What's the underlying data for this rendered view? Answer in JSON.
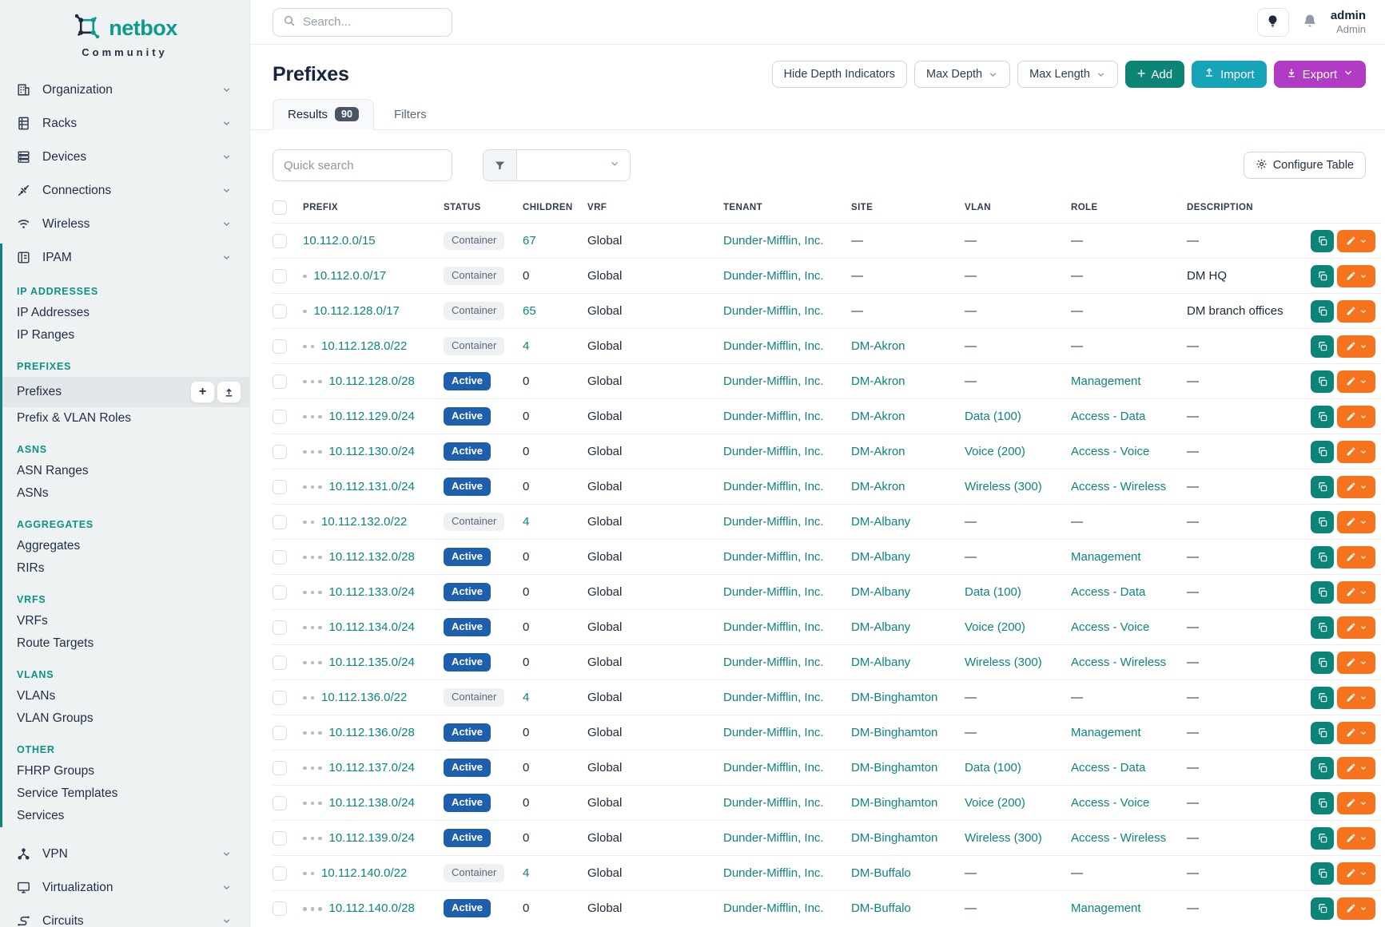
{
  "brand": {
    "name": "netbox",
    "subtitle": "Community"
  },
  "topbar": {
    "search_placeholder": "Search...",
    "user": {
      "name": "admin",
      "role": "Admin"
    }
  },
  "sidebar": {
    "top_items": [
      {
        "label": "Organization",
        "icon": "building-icon"
      },
      {
        "label": "Racks",
        "icon": "rack-icon"
      },
      {
        "label": "Devices",
        "icon": "devices-icon"
      },
      {
        "label": "Connections",
        "icon": "connections-icon"
      },
      {
        "label": "Wireless",
        "icon": "wifi-icon"
      }
    ],
    "ipam": {
      "label": "IPAM",
      "icon": "ipam-icon",
      "expanded": true,
      "sections": [
        {
          "header": "IP ADDRESSES",
          "items": [
            {
              "label": "IP Addresses"
            },
            {
              "label": "IP Ranges"
            }
          ]
        },
        {
          "header": "PREFIXES",
          "items": [
            {
              "label": "Prefixes",
              "active": true,
              "quick_buttons": [
                "plus",
                "upload"
              ]
            },
            {
              "label": "Prefix & VLAN Roles"
            }
          ]
        },
        {
          "header": "ASNS",
          "items": [
            {
              "label": "ASN Ranges"
            },
            {
              "label": "ASNs"
            }
          ]
        },
        {
          "header": "AGGREGATES",
          "items": [
            {
              "label": "Aggregates"
            },
            {
              "label": "RIRs"
            }
          ]
        },
        {
          "header": "VRFS",
          "items": [
            {
              "label": "VRFs"
            },
            {
              "label": "Route Targets"
            }
          ]
        },
        {
          "header": "VLANS",
          "items": [
            {
              "label": "VLANs"
            },
            {
              "label": "VLAN Groups"
            }
          ]
        },
        {
          "header": "OTHER",
          "items": [
            {
              "label": "FHRP Groups"
            },
            {
              "label": "Service Templates"
            },
            {
              "label": "Services"
            }
          ]
        }
      ]
    },
    "bottom_items": [
      {
        "label": "VPN",
        "icon": "vpn-icon"
      },
      {
        "label": "Virtualization",
        "icon": "virtualization-icon"
      },
      {
        "label": "Circuits",
        "icon": "circuits-icon"
      }
    ]
  },
  "page": {
    "title": "Prefixes",
    "controls": {
      "hide_depth_label": "Hide Depth Indicators",
      "max_depth_label": "Max Depth",
      "max_length_label": "Max Length",
      "add_label": "Add",
      "import_label": "Import",
      "export_label": "Export"
    },
    "tabs": [
      {
        "label": "Results",
        "badge": "90",
        "active": true
      },
      {
        "label": "Filters",
        "active": false
      }
    ],
    "quick_search_placeholder": "Quick search",
    "filter_select_value": "",
    "configure_table_label": "Configure Table"
  },
  "table": {
    "columns": [
      "PREFIX",
      "STATUS",
      "CHILDREN",
      "VRF",
      "TENANT",
      "SITE",
      "VLAN",
      "ROLE",
      "DESCRIPTION"
    ],
    "rows": [
      {
        "depth": 0,
        "prefix": "10.112.0.0/15",
        "status": "Container",
        "children": "67",
        "children_link": true,
        "vrf": "Global",
        "tenant": "Dunder-Mifflin, Inc.",
        "site": "—",
        "vlan": "—",
        "role": "—",
        "description": "—"
      },
      {
        "depth": 1,
        "prefix": "10.112.0.0/17",
        "status": "Container",
        "children": "0",
        "children_link": false,
        "vrf": "Global",
        "tenant": "Dunder-Mifflin, Inc.",
        "site": "—",
        "vlan": "—",
        "role": "—",
        "description": "DM HQ"
      },
      {
        "depth": 1,
        "prefix": "10.112.128.0/17",
        "status": "Container",
        "children": "65",
        "children_link": true,
        "vrf": "Global",
        "tenant": "Dunder-Mifflin, Inc.",
        "site": "—",
        "vlan": "—",
        "role": "—",
        "description": "DM branch offices"
      },
      {
        "depth": 2,
        "prefix": "10.112.128.0/22",
        "status": "Container",
        "children": "4",
        "children_link": true,
        "vrf": "Global",
        "tenant": "Dunder-Mifflin, Inc.",
        "site": "DM-Akron",
        "vlan": "—",
        "role": "—",
        "description": "—"
      },
      {
        "depth": 3,
        "prefix": "10.112.128.0/28",
        "status": "Active",
        "children": "0",
        "children_link": false,
        "vrf": "Global",
        "tenant": "Dunder-Mifflin, Inc.",
        "site": "DM-Akron",
        "vlan": "—",
        "role": "Management",
        "description": "—"
      },
      {
        "depth": 3,
        "prefix": "10.112.129.0/24",
        "status": "Active",
        "children": "0",
        "children_link": false,
        "vrf": "Global",
        "tenant": "Dunder-Mifflin, Inc.",
        "site": "DM-Akron",
        "vlan": "Data (100)",
        "role": "Access - Data",
        "description": "—"
      },
      {
        "depth": 3,
        "prefix": "10.112.130.0/24",
        "status": "Active",
        "children": "0",
        "children_link": false,
        "vrf": "Global",
        "tenant": "Dunder-Mifflin, Inc.",
        "site": "DM-Akron",
        "vlan": "Voice (200)",
        "role": "Access - Voice",
        "description": "—"
      },
      {
        "depth": 3,
        "prefix": "10.112.131.0/24",
        "status": "Active",
        "children": "0",
        "children_link": false,
        "vrf": "Global",
        "tenant": "Dunder-Mifflin, Inc.",
        "site": "DM-Akron",
        "vlan": "Wireless (300)",
        "role": "Access - Wireless",
        "description": "—"
      },
      {
        "depth": 2,
        "prefix": "10.112.132.0/22",
        "status": "Container",
        "children": "4",
        "children_link": true,
        "vrf": "Global",
        "tenant": "Dunder-Mifflin, Inc.",
        "site": "DM-Albany",
        "vlan": "—",
        "role": "—",
        "description": "—"
      },
      {
        "depth": 3,
        "prefix": "10.112.132.0/28",
        "status": "Active",
        "children": "0",
        "children_link": false,
        "vrf": "Global",
        "tenant": "Dunder-Mifflin, Inc.",
        "site": "DM-Albany",
        "vlan": "—",
        "role": "Management",
        "description": "—"
      },
      {
        "depth": 3,
        "prefix": "10.112.133.0/24",
        "status": "Active",
        "children": "0",
        "children_link": false,
        "vrf": "Global",
        "tenant": "Dunder-Mifflin, Inc.",
        "site": "DM-Albany",
        "vlan": "Data (100)",
        "role": "Access - Data",
        "description": "—"
      },
      {
        "depth": 3,
        "prefix": "10.112.134.0/24",
        "status": "Active",
        "children": "0",
        "children_link": false,
        "vrf": "Global",
        "tenant": "Dunder-Mifflin, Inc.",
        "site": "DM-Albany",
        "vlan": "Voice (200)",
        "role": "Access - Voice",
        "description": "—"
      },
      {
        "depth": 3,
        "prefix": "10.112.135.0/24",
        "status": "Active",
        "children": "0",
        "children_link": false,
        "vrf": "Global",
        "tenant": "Dunder-Mifflin, Inc.",
        "site": "DM-Albany",
        "vlan": "Wireless (300)",
        "role": "Access - Wireless",
        "description": "—"
      },
      {
        "depth": 2,
        "prefix": "10.112.136.0/22",
        "status": "Container",
        "children": "4",
        "children_link": true,
        "vrf": "Global",
        "tenant": "Dunder-Mifflin, Inc.",
        "site": "DM-Binghamton",
        "vlan": "—",
        "role": "—",
        "description": "—"
      },
      {
        "depth": 3,
        "prefix": "10.112.136.0/28",
        "status": "Active",
        "children": "0",
        "children_link": false,
        "vrf": "Global",
        "tenant": "Dunder-Mifflin, Inc.",
        "site": "DM-Binghamton",
        "vlan": "—",
        "role": "Management",
        "description": "—"
      },
      {
        "depth": 3,
        "prefix": "10.112.137.0/24",
        "status": "Active",
        "children": "0",
        "children_link": false,
        "vrf": "Global",
        "tenant": "Dunder-Mifflin, Inc.",
        "site": "DM-Binghamton",
        "vlan": "Data (100)",
        "role": "Access - Data",
        "description": "—"
      },
      {
        "depth": 3,
        "prefix": "10.112.138.0/24",
        "status": "Active",
        "children": "0",
        "children_link": false,
        "vrf": "Global",
        "tenant": "Dunder-Mifflin, Inc.",
        "site": "DM-Binghamton",
        "vlan": "Voice (200)",
        "role": "Access - Voice",
        "description": "—"
      },
      {
        "depth": 3,
        "prefix": "10.112.139.0/24",
        "status": "Active",
        "children": "0",
        "children_link": false,
        "vrf": "Global",
        "tenant": "Dunder-Mifflin, Inc.",
        "site": "DM-Binghamton",
        "vlan": "Wireless (300)",
        "role": "Access - Wireless",
        "description": "—"
      },
      {
        "depth": 2,
        "prefix": "10.112.140.0/22",
        "status": "Container",
        "children": "4",
        "children_link": true,
        "vrf": "Global",
        "tenant": "Dunder-Mifflin, Inc.",
        "site": "DM-Buffalo",
        "vlan": "—",
        "role": "—",
        "description": "—"
      },
      {
        "depth": 3,
        "prefix": "10.112.140.0/28",
        "status": "Active",
        "children": "0",
        "children_link": false,
        "vrf": "Global",
        "tenant": "Dunder-Mifflin, Inc.",
        "site": "DM-Buffalo",
        "vlan": "—",
        "role": "Management",
        "description": "—"
      }
    ],
    "row_action_icons": [
      "copy-icon",
      "pencil-icon",
      "chevron-down-icon"
    ]
  },
  "colors": {
    "accent_teal": "#0d8480",
    "brand_teal": "#0c9a8d",
    "active_badge": "#1d5fad",
    "add_button": "#0c8577",
    "import_button": "#16a3b8",
    "export_button": "#b23bc6",
    "edit_button": "#f4731c"
  }
}
